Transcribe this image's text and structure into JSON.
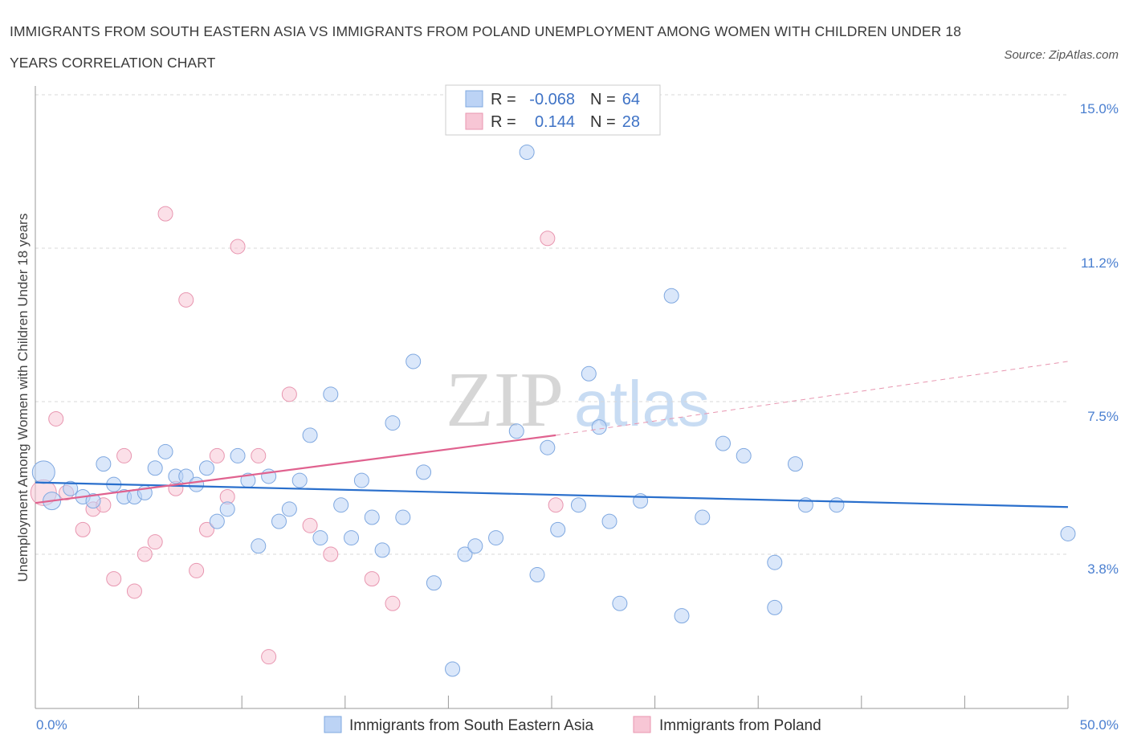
{
  "title": "IMMIGRANTS FROM SOUTH EASTERN ASIA VS IMMIGRANTS FROM POLAND UNEMPLOYMENT AMONG WOMEN WITH CHILDREN UNDER 18 YEARS CORRELATION CHART",
  "source": "Source: ZipAtlas.com",
  "watermark": {
    "zip": "ZIP",
    "atlas": "atlas"
  },
  "legend": {
    "r_label": "R =",
    "n_label": "N =",
    "series": [
      {
        "r": "-0.068",
        "n": "64"
      },
      {
        "r": "0.144",
        "n": "28"
      }
    ]
  },
  "bottom_legend": [
    "Immigrants from South Eastern Asia",
    "Immigrants from Poland"
  ],
  "colors": {
    "blue_fill": "#bcd3f5",
    "blue_stroke": "#7fa8e0",
    "blue_line": "#2a6fcc",
    "pink_fill": "#f7c6d5",
    "pink_stroke": "#e896b0",
    "pink_line": "#e0628f",
    "axis_text": "#4a7fd0",
    "grid": "#d8d8d8"
  },
  "chart_data": {
    "type": "scatter",
    "xlabel": "",
    "ylabel": "Unemployment Among Women with Children Under 18 years",
    "xlim": [
      0,
      50
    ],
    "ylim": [
      0,
      15
    ],
    "x_tick_labels": [
      "0.0%",
      "50.0%"
    ],
    "y_ticks": [
      3.8,
      7.5,
      11.2,
      15.0
    ],
    "y_tick_labels": [
      "3.8%",
      "7.5%",
      "11.2%",
      "15.0%"
    ],
    "grid": "horizontal dashed",
    "series": [
      {
        "name": "Immigrants from South Eastern Asia",
        "color": "#bcd3f5",
        "points": [
          [
            0.4,
            5.8
          ],
          [
            0.8,
            5.1
          ],
          [
            1.7,
            5.4
          ],
          [
            2.3,
            5.2
          ],
          [
            2.8,
            5.1
          ],
          [
            3.3,
            6.0
          ],
          [
            3.8,
            5.5
          ],
          [
            4.3,
            5.2
          ],
          [
            4.8,
            5.2
          ],
          [
            5.3,
            5.3
          ],
          [
            5.8,
            5.9
          ],
          [
            6.3,
            6.3
          ],
          [
            6.8,
            5.7
          ],
          [
            7.3,
            5.7
          ],
          [
            7.8,
            5.5
          ],
          [
            8.3,
            5.9
          ],
          [
            8.8,
            4.6
          ],
          [
            9.3,
            4.9
          ],
          [
            9.8,
            6.2
          ],
          [
            10.3,
            5.6
          ],
          [
            10.8,
            4.0
          ],
          [
            11.3,
            5.7
          ],
          [
            11.8,
            4.6
          ],
          [
            12.3,
            4.9
          ],
          [
            12.8,
            5.6
          ],
          [
            13.3,
            6.7
          ],
          [
            13.8,
            4.2
          ],
          [
            14.3,
            7.7
          ],
          [
            14.8,
            5.0
          ],
          [
            15.3,
            4.2
          ],
          [
            15.8,
            5.6
          ],
          [
            16.3,
            4.7
          ],
          [
            16.8,
            3.9
          ],
          [
            17.3,
            7.0
          ],
          [
            17.8,
            4.7
          ],
          [
            18.3,
            8.5
          ],
          [
            18.8,
            5.8
          ],
          [
            19.3,
            3.1
          ],
          [
            20.2,
            1.0
          ],
          [
            20.8,
            3.8
          ],
          [
            21.3,
            4.0
          ],
          [
            22.3,
            4.2
          ],
          [
            23.3,
            6.8
          ],
          [
            23.8,
            13.6
          ],
          [
            24.3,
            3.3
          ],
          [
            24.8,
            6.4
          ],
          [
            25.3,
            4.4
          ],
          [
            26.3,
            5.0
          ],
          [
            26.8,
            8.2
          ],
          [
            27.3,
            6.9
          ],
          [
            27.8,
            4.6
          ],
          [
            28.3,
            2.6
          ],
          [
            29.3,
            5.1
          ],
          [
            30.8,
            10.1
          ],
          [
            31.3,
            2.3
          ],
          [
            32.3,
            4.7
          ],
          [
            33.3,
            6.5
          ],
          [
            34.3,
            6.2
          ],
          [
            35.8,
            3.6
          ],
          [
            35.8,
            2.5
          ],
          [
            36.8,
            6.0
          ],
          [
            37.3,
            5.0
          ],
          [
            38.8,
            5.0
          ],
          [
            50.0,
            4.3
          ]
        ],
        "trend": {
          "x0": 0,
          "y0": 5.55,
          "x1": 50,
          "y1": 4.95
        }
      },
      {
        "name": "Immigrants from Poland",
        "color": "#f7c6d5",
        "points": [
          [
            0.4,
            5.3
          ],
          [
            1.0,
            7.1
          ],
          [
            1.5,
            5.3
          ],
          [
            2.3,
            4.4
          ],
          [
            2.8,
            4.9
          ],
          [
            3.3,
            5.0
          ],
          [
            3.8,
            3.2
          ],
          [
            4.3,
            6.2
          ],
          [
            4.8,
            2.9
          ],
          [
            5.3,
            3.8
          ],
          [
            5.8,
            4.1
          ],
          [
            6.3,
            12.1
          ],
          [
            6.8,
            5.4
          ],
          [
            7.3,
            10.0
          ],
          [
            7.8,
            3.4
          ],
          [
            8.3,
            4.4
          ],
          [
            8.8,
            6.2
          ],
          [
            9.3,
            5.2
          ],
          [
            9.8,
            11.3
          ],
          [
            10.8,
            6.2
          ],
          [
            11.3,
            1.3
          ],
          [
            12.3,
            7.7
          ],
          [
            13.3,
            4.5
          ],
          [
            14.3,
            3.8
          ],
          [
            16.3,
            3.2
          ],
          [
            17.3,
            2.6
          ],
          [
            24.8,
            11.5
          ],
          [
            25.2,
            5.0
          ]
        ],
        "trend": {
          "x0": 0,
          "y0": 5.05,
          "x1": 25.2,
          "y1": 6.7,
          "x_dash_end": 50,
          "y_dash_end": 8.5
        }
      }
    ]
  }
}
